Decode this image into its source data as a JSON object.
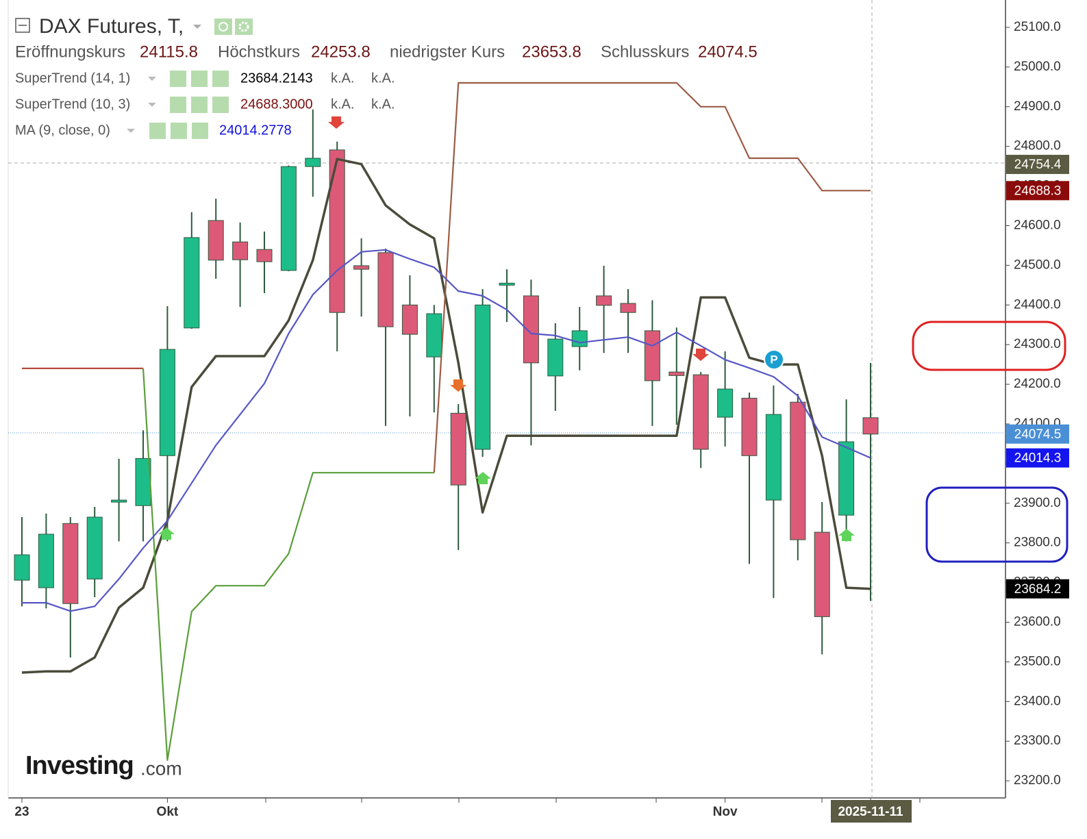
{
  "chart_data": {
    "type": "candlestick",
    "title": "DAX Futures, T,",
    "ohlc_labels": {
      "open": "Eröffnungskurs",
      "high": "Höchstkurs",
      "low": "niedrigster Kurs",
      "close": "Schlusskurs"
    },
    "categories": [
      "23",
      null,
      null,
      null,
      null,
      null,
      "Okt",
      null,
      null,
      null,
      null,
      null,
      null,
      null,
      null,
      null,
      null,
      null,
      null,
      null,
      null,
      null,
      null,
      null,
      null,
      null,
      null,
      null,
      null,
      "Nov",
      null,
      null,
      null,
      null,
      null,
      "2025-11-11"
    ],
    "open": [
      23706,
      23687,
      23849,
      23709,
      23905,
      23894,
      24020,
      24342,
      24613,
      24559,
      24540,
      24487,
      24749,
      24791,
      24499,
      24532,
      24400,
      24269,
      24127,
      24036,
      24450,
      24423,
      24221,
      24295,
      24423,
      24404,
      24335,
      24231,
      24224,
      24117,
      24165,
      23908,
      24155,
      23827,
      23870,
      24115.8
    ],
    "high": [
      23865,
      23874,
      23865,
      23891,
      24012,
      24084,
      24397,
      24634,
      24668,
      24608,
      24585,
      24752,
      24893,
      24812,
      24568,
      24542,
      24475,
      24400,
      24150,
      24440,
      24490,
      24464,
      24354,
      24395,
      24499,
      24440,
      24412,
      24343,
      24231,
      24283,
      24179,
      24197,
      24176,
      23903,
      24162,
      24253.8
    ],
    "low": [
      23640,
      23635,
      23511,
      23663,
      23804,
      23804,
      23804,
      24340,
      24466,
      24395,
      24430,
      24485,
      24673,
      24283,
      24371,
      24095,
      24119,
      24129,
      23782,
      24017,
      24357,
      24046,
      24133,
      24235,
      24279,
      24279,
      24095,
      24098,
      23989,
      24043,
      23747,
      23661,
      23756,
      23519,
      23804,
      23653.8
    ],
    "close": [
      23770,
      23822,
      23647,
      23865,
      23908,
      24013,
      24288,
      24570,
      24513,
      24514,
      24509,
      24749,
      24770,
      24381,
      24490,
      24345,
      24326,
      24378,
      23946,
      24400,
      24455,
      24254,
      24314,
      24335,
      24399,
      24381,
      24209,
      24222,
      24036,
      24188,
      24020,
      24124,
      23808,
      23614,
      24055,
      24074.5
    ],
    "up_color": "#1dbd8a",
    "down_color": "#dc5a78",
    "wick_color": "#2d5a3e",
    "indicators": [
      {
        "name": "SuperTrend (14, 1)",
        "value": 23684.2143,
        "value_color": "#000000",
        "status": [
          "k.A.",
          "k.A."
        ],
        "color": "#4b4b3b",
        "values": [
          23473,
          23476,
          23476,
          23511,
          23637,
          23687,
          23856,
          24193,
          24271,
          24271,
          24271,
          24361,
          24513,
          24768,
          24755,
          24651,
          24603,
          24568,
          24254,
          23877,
          24070,
          24070,
          24070,
          24070,
          24070,
          24070,
          24070,
          24070,
          24419,
          24419,
          24267,
          24250,
          24250,
          24020,
          23687,
          23684.2
        ]
      },
      {
        "name": "SuperTrend (10, 3)",
        "value": {
          "value": 24688.3,
          "label": "24688.3000"
        },
        "value_color": "#7a1010",
        "status": [
          "k.A.",
          "k.A."
        ],
        "colors": [
          "#b24a3e",
          "#b24a3e",
          "#b24a3e",
          "#b24a3e",
          "#b24a3e",
          "#b24a3e",
          "#5a9e3a",
          "#5a9e3a",
          "#5a9e3a",
          "#5a9e3a",
          "#5a9e3a",
          "#5a9e3a",
          "#5a9e3a",
          "#5a9e3a",
          "#5a9e3a",
          "#5a9e3a",
          "#5a9e3a",
          "#5a9e3a",
          "#9c5b45",
          "#9c5b45",
          "#9c5b45",
          "#9c5b45",
          "#9c5b45",
          "#9c5b45",
          "#9c5b45",
          "#9c5b45",
          "#9c5b45",
          "#9c5b45",
          "#9c5b45",
          "#9c5b45",
          "#9c5b45",
          "#9c5b45",
          "#9c5b45",
          "#9c5b45",
          "#9c5b45",
          "#9c5b45"
        ],
        "values": [
          24240,
          24240,
          24240,
          24240,
          24240,
          24240,
          23252,
          23627,
          23692,
          23692,
          23692,
          23773,
          23977,
          23977,
          23977,
          23977,
          23977,
          23977,
          24960,
          24960,
          24960,
          24960,
          24960,
          24960,
          24960,
          24960,
          24960,
          24960,
          24900,
          24900,
          24770,
          24770,
          24770,
          24688.3,
          24688.3,
          24688.3
        ]
      },
      {
        "name": "MA (9, close, 0)",
        "value": 24014.2778,
        "value_color": "#1010dd",
        "color": "#5656c6",
        "values": [
          23649,
          23649,
          23628,
          23640,
          23709,
          23787,
          23856,
          23951,
          24046,
          24124,
          24202,
          24328,
          24426,
          24487,
          24534,
          24539,
          24516,
          24495,
          24435,
          24423,
          24388,
          24328,
          24323,
          24305,
          24312,
          24319,
          24297,
          24331,
          24297,
          24262,
          24241,
          24219,
          24171,
          24067,
          24041,
          24014.3
        ]
      }
    ],
    "ylim": [
      23157,
      25169
    ],
    "yticks": [
      {
        "value": 23200,
        "label": "23200.0"
      },
      {
        "value": 23300,
        "label": "23300.0"
      },
      {
        "value": 23400,
        "label": "23400.0"
      },
      {
        "value": 23500,
        "label": "23500.0"
      },
      {
        "value": 23600,
        "label": "23600.0"
      },
      {
        "value": 23700,
        "label": "23700.0"
      },
      {
        "value": 23800,
        "label": "23800.0"
      },
      {
        "value": 23900,
        "label": "23900.0"
      },
      {
        "value": 24000,
        "label": "24000.0"
      },
      {
        "value": 24100,
        "label": "24100.0"
      },
      {
        "value": 24200,
        "label": "24200.0"
      },
      {
        "value": 24300,
        "label": "24300.0"
      },
      {
        "value": 24400,
        "label": "24400.0"
      },
      {
        "value": 24500,
        "label": "24500.0"
      },
      {
        "value": 24600,
        "label": "24600.0"
      },
      {
        "value": 24700,
        "label": "24700.0"
      },
      {
        "value": 24800,
        "label": "24800.0"
      },
      {
        "value": 24900,
        "label": "24900.0"
      },
      {
        "value": 25000,
        "label": "25000.0"
      },
      {
        "value": 25100,
        "label": "25100.0"
      }
    ],
    "price_tags": [
      {
        "value": 24754.4,
        "color": "#5b5a42"
      },
      {
        "value": 24688.3,
        "color": "#8b0a0a"
      },
      {
        "value": 24074.5,
        "color": "#4a8fd6"
      },
      {
        "value": 24014.3,
        "color": "#1414ee"
      },
      {
        "value": 23684.2,
        "color": "#000000"
      }
    ],
    "marker_label": "P",
    "watermark": {
      "brand": "Investing",
      "suffix": ".com"
    }
  }
}
